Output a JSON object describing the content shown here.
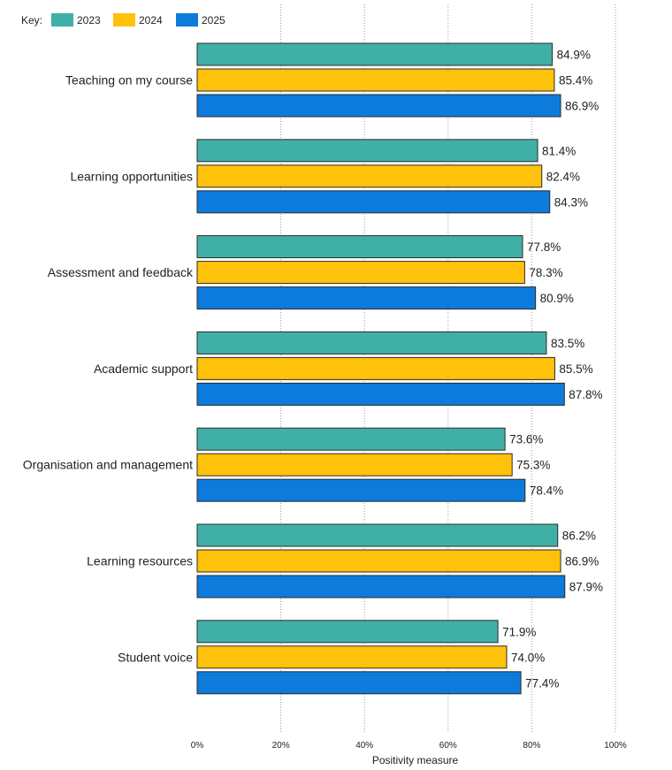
{
  "chart_data": {
    "type": "bar",
    "orientation": "horizontal",
    "legend_key_label": "Key:",
    "categories": [
      "Teaching on my course",
      "Learning opportunities",
      "Assessment and feedback",
      "Academic support",
      "Organisation and management",
      "Learning resources",
      "Student voice"
    ],
    "series": [
      {
        "name": "2023",
        "color": "#40b0a6",
        "values": [
          84.9,
          81.4,
          77.8,
          83.5,
          73.6,
          86.2,
          71.9
        ],
        "labels": [
          "84.9%",
          "81.4%",
          "77.8%",
          "83.5%",
          "73.6%",
          "86.2%",
          "71.9%"
        ]
      },
      {
        "name": "2024",
        "color": "#ffc20a",
        "values": [
          85.4,
          82.4,
          78.3,
          85.5,
          75.3,
          86.9,
          74.0
        ],
        "labels": [
          "85.4%",
          "82.4%",
          "78.3%",
          "85.5%",
          "75.3%",
          "86.9%",
          "74.0%"
        ]
      },
      {
        "name": "2025",
        "color": "#0c7bdc",
        "values": [
          86.9,
          84.3,
          80.9,
          87.8,
          78.4,
          87.9,
          77.4
        ],
        "labels": [
          "86.9%",
          "84.3%",
          "80.9%",
          "87.8%",
          "78.4%",
          "87.9%",
          "77.4%"
        ]
      }
    ],
    "xlim": [
      0,
      100
    ],
    "xticks": [
      0,
      20,
      40,
      60,
      80,
      100
    ],
    "xtick_labels": [
      "0%",
      "20%",
      "40%",
      "60%",
      "80%",
      "100%"
    ],
    "xlabel": "Positivity measure",
    "ylabel": "",
    "grid": "vertical dotted",
    "legend_position": "top-left"
  }
}
